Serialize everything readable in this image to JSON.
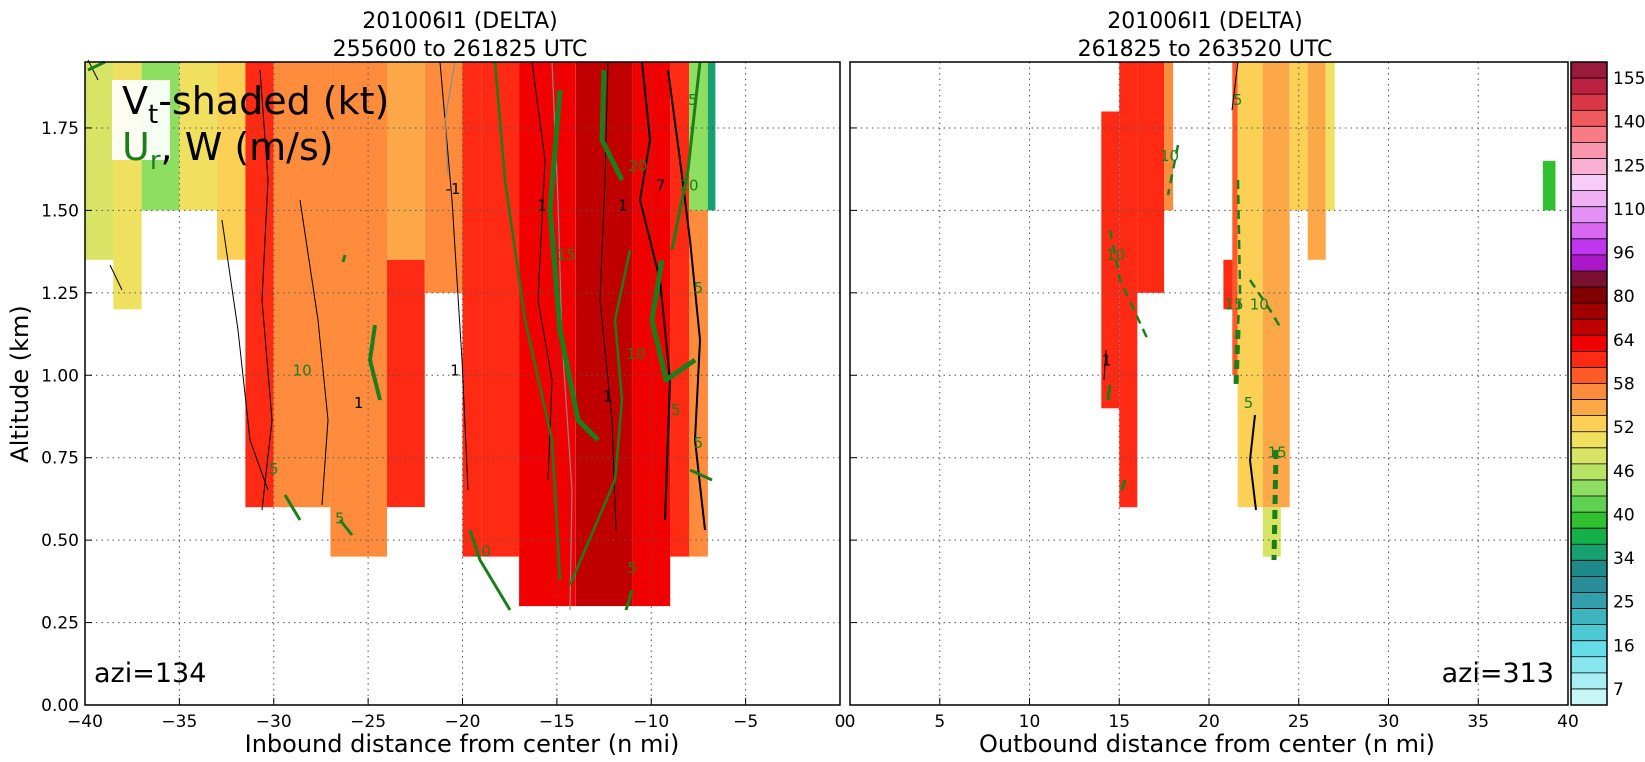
{
  "chart_data": [
    {
      "type": "contour",
      "panel": "inbound",
      "title_line1": "201006I1 (DELTA)",
      "title_line2": "255600 to 261825 UTC",
      "xlabel": "Inbound distance from center (n mi)",
      "ylabel": "Altitude (km)",
      "xlim": [
        -40,
        0
      ],
      "ylim": [
        0,
        1.95
      ],
      "xticks": [
        -40,
        -35,
        -30,
        -25,
        -20,
        -15,
        -10,
        -5,
        0
      ],
      "xtick_labels": [
        "−40",
        "−35",
        "−30",
        "−25",
        "−20",
        "−15",
        "−10",
        "−5",
        "0"
      ],
      "yticks": [
        0.0,
        0.25,
        0.5,
        0.75,
        1.0,
        1.25,
        1.5,
        1.75
      ],
      "ytick_labels": [
        "0.00",
        "0.25",
        "0.50",
        "0.75",
        "1.00",
        "1.25",
        "1.50",
        "1.75"
      ],
      "grid": true,
      "legend_line1": "V",
      "legend_line1_sub": "t",
      "legend_line1_rest": "-shaded (kt)",
      "legend_line2": "U",
      "legend_line2_sub": "r",
      "legend_line2_rest": ", W (m/s)",
      "annotation": "azi=134",
      "shaded_blocks": [
        {
          "x": [
            -40,
            -38.5
          ],
          "y": [
            1.35,
            1.95
          ],
          "value": 54
        },
        {
          "x": [
            -38.5,
            -37
          ],
          "y": [
            1.2,
            1.95
          ],
          "value": 56
        },
        {
          "x": [
            -37,
            -35
          ],
          "y": [
            1.5,
            1.95
          ],
          "value": 46
        },
        {
          "x": [
            -35,
            -33
          ],
          "y": [
            1.5,
            1.95
          ],
          "value": 56
        },
        {
          "x": [
            -33,
            -31.5
          ],
          "y": [
            1.35,
            1.95
          ],
          "value": 58
        },
        {
          "x": [
            -31.5,
            -30
          ],
          "y": [
            0.6,
            1.95
          ],
          "value": 80
        },
        {
          "x": [
            -30,
            -27
          ],
          "y": [
            0.6,
            1.95
          ],
          "value": 70
        },
        {
          "x": [
            -27,
            -24
          ],
          "y": [
            0.45,
            1.95
          ],
          "value": 64
        },
        {
          "x": [
            -24,
            -22
          ],
          "y": [
            1.35,
            1.95
          ],
          "value": 62
        },
        {
          "x": [
            -24,
            -22
          ],
          "y": [
            0.6,
            1.35
          ],
          "value": 80
        },
        {
          "x": [
            -22,
            -20
          ],
          "y": [
            1.25,
            1.95
          ],
          "value": 66
        },
        {
          "x": [
            -20,
            -19
          ],
          "y": [
            0.45,
            1.95
          ],
          "value": 80
        },
        {
          "x": [
            -19,
            -17
          ],
          "y": [
            0.45,
            1.95
          ],
          "value": 84
        },
        {
          "x": [
            -17,
            -14
          ],
          "y": [
            0.3,
            1.95
          ],
          "value": 88
        },
        {
          "x": [
            -14,
            -11
          ],
          "y": [
            0.3,
            1.95
          ],
          "value": 96
        },
        {
          "x": [
            -11,
            -9
          ],
          "y": [
            0.3,
            1.95
          ],
          "value": 92
        },
        {
          "x": [
            -9,
            -8
          ],
          "y": [
            0.45,
            1.95
          ],
          "value": 80
        },
        {
          "x": [
            -8,
            -7
          ],
          "y": [
            0.45,
            1.95
          ],
          "value": 64
        },
        {
          "x": [
            -8,
            -7
          ],
          "y": [
            1.5,
            1.95
          ],
          "value": 46
        },
        {
          "x": [
            -7,
            -6.6
          ],
          "y": [
            1.5,
            1.95
          ],
          "value": 34
        }
      ],
      "contour_labels": [
        {
          "text": "-1",
          "x": -20.5,
          "y": 1.55
        },
        {
          "text": "1",
          "x": -15.8,
          "y": 1.5
        },
        {
          "text": "1",
          "x": -11.5,
          "y": 1.5
        },
        {
          "text": "15",
          "x": -14.5,
          "y": 1.35
        },
        {
          "text": "20",
          "x": -10.7,
          "y": 1.62
        },
        {
          "text": "7",
          "x": -9.5,
          "y": 1.56
        },
        {
          "text": "20",
          "x": -8,
          "y": 1.56
        },
        {
          "text": "5",
          "x": -7.8,
          "y": 1.82
        },
        {
          "text": "10",
          "x": -28.5,
          "y": 1.0
        },
        {
          "text": "1",
          "x": -20.4,
          "y": 1.0
        },
        {
          "text": "10",
          "x": -10.8,
          "y": 1.05
        },
        {
          "text": "1",
          "x": -12.3,
          "y": 0.92
        },
        {
          "text": "5",
          "x": -8.7,
          "y": 0.88
        },
        {
          "text": "1",
          "x": -25.5,
          "y": 0.9
        },
        {
          "text": "5",
          "x": -30,
          "y": 0.7
        },
        {
          "text": "5",
          "x": -26.5,
          "y": 0.55
        },
        {
          "text": "10",
          "x": -19,
          "y": 0.45
        },
        {
          "text": "5",
          "x": -11,
          "y": 0.4
        },
        {
          "text": "5",
          "x": -7.5,
          "y": 1.25
        },
        {
          "text": "5",
          "x": -7.5,
          "y": 0.78
        }
      ]
    },
    {
      "type": "contour",
      "panel": "outbound",
      "title_line1": "201006I1 (DELTA)",
      "title_line2": "261825 to 263520 UTC",
      "xlabel": "Outbound distance from center (n mi)",
      "xlim": [
        0,
        40
      ],
      "ylim": [
        0,
        1.95
      ],
      "xticks": [
        0,
        5,
        10,
        15,
        20,
        25,
        30,
        35,
        40
      ],
      "xtick_labels": [
        "0",
        "5",
        "10",
        "15",
        "20",
        "25",
        "30",
        "35",
        "40"
      ],
      "grid": true,
      "annotation": "azi=313",
      "shaded_blocks": [
        {
          "x": [
            14,
            15
          ],
          "y": [
            0.9,
            1.8
          ],
          "value": 80
        },
        {
          "x": [
            15,
            16
          ],
          "y": [
            0.6,
            1.95
          ],
          "value": 80
        },
        {
          "x": [
            16,
            17.5
          ],
          "y": [
            1.25,
            1.95
          ],
          "value": 80
        },
        {
          "x": [
            17.5,
            18
          ],
          "y": [
            1.5,
            1.95
          ],
          "value": 64
        },
        {
          "x": [
            20.8,
            21.5
          ],
          "y": [
            1.2,
            1.35
          ],
          "value": 80
        },
        {
          "x": [
            21.3,
            21.6
          ],
          "y": [
            1.0,
            1.95
          ],
          "value": 78
        },
        {
          "x": [
            21.6,
            23
          ],
          "y": [
            0.6,
            1.95
          ],
          "value": 60
        },
        {
          "x": [
            23,
            24.5
          ],
          "y": [
            0.6,
            1.95
          ],
          "value": 62
        },
        {
          "x": [
            23,
            24
          ],
          "y": [
            0.45,
            0.6
          ],
          "value": 54
        },
        {
          "x": [
            24.5,
            25.5
          ],
          "y": [
            1.5,
            1.95
          ],
          "value": 58
        },
        {
          "x": [
            25.5,
            26.5
          ],
          "y": [
            1.35,
            1.95
          ],
          "value": 62
        },
        {
          "x": [
            26.5,
            27
          ],
          "y": [
            1.5,
            1.95
          ],
          "value": 56
        },
        {
          "x": [
            38.6,
            39.3
          ],
          "y": [
            1.5,
            1.65
          ],
          "value": 42
        }
      ],
      "contour_labels": [
        {
          "text": "5",
          "x": 21.6,
          "y": 1.82
        },
        {
          "text": "10",
          "x": 17.8,
          "y": 1.65
        },
        {
          "text": "10",
          "x": 14.8,
          "y": 1.35
        },
        {
          "text": "15",
          "x": 21.4,
          "y": 1.2
        },
        {
          "text": "10",
          "x": 22.8,
          "y": 1.2
        },
        {
          "text": "1",
          "x": 14.3,
          "y": 1.03
        },
        {
          "text": "5",
          "x": 22.2,
          "y": 0.9
        },
        {
          "text": "15",
          "x": 23.8,
          "y": 0.75
        }
      ]
    }
  ],
  "colorbar": {
    "tick_labels": [
      "155",
      "140",
      "125",
      "110",
      "96",
      "80",
      "64",
      "58",
      "52",
      "46",
      "40",
      "34",
      "25",
      "16",
      "7"
    ],
    "levels": [
      7,
      10,
      13,
      16,
      19,
      22,
      25,
      28,
      31,
      34,
      37,
      40,
      43,
      46,
      49,
      52,
      55,
      58,
      61,
      64,
      72,
      80,
      88,
      96,
      103,
      110,
      118,
      125,
      133,
      140,
      148,
      155,
      160
    ],
    "colors": [
      "#c8f5f5",
      "#a8eef2",
      "#88e6ee",
      "#66dce6",
      "#4ec8d2",
      "#3eb4bf",
      "#329fab",
      "#2a8d98",
      "#1e8a8a",
      "#17a070",
      "#16b048",
      "#30c030",
      "#5ed250",
      "#8ede62",
      "#b8e466",
      "#d8e466",
      "#f0e060",
      "#fbd055",
      "#fca848",
      "#ff8c3c",
      "#ff5a28",
      "#ff2a14",
      "#f00000",
      "#c00000",
      "#a00000",
      "#800000",
      "#7a1030",
      "#aa18c8",
      "#c036f0",
      "#d868f2",
      "#e590f4",
      "#efb0f4",
      "#f8ccf8",
      "#f9b0d2",
      "#f898ae",
      "#f87c86",
      "#ee5a5e",
      "#d83848",
      "#bc2040",
      "#981a3c"
    ],
    "bounds": [
      7,
      160
    ]
  }
}
